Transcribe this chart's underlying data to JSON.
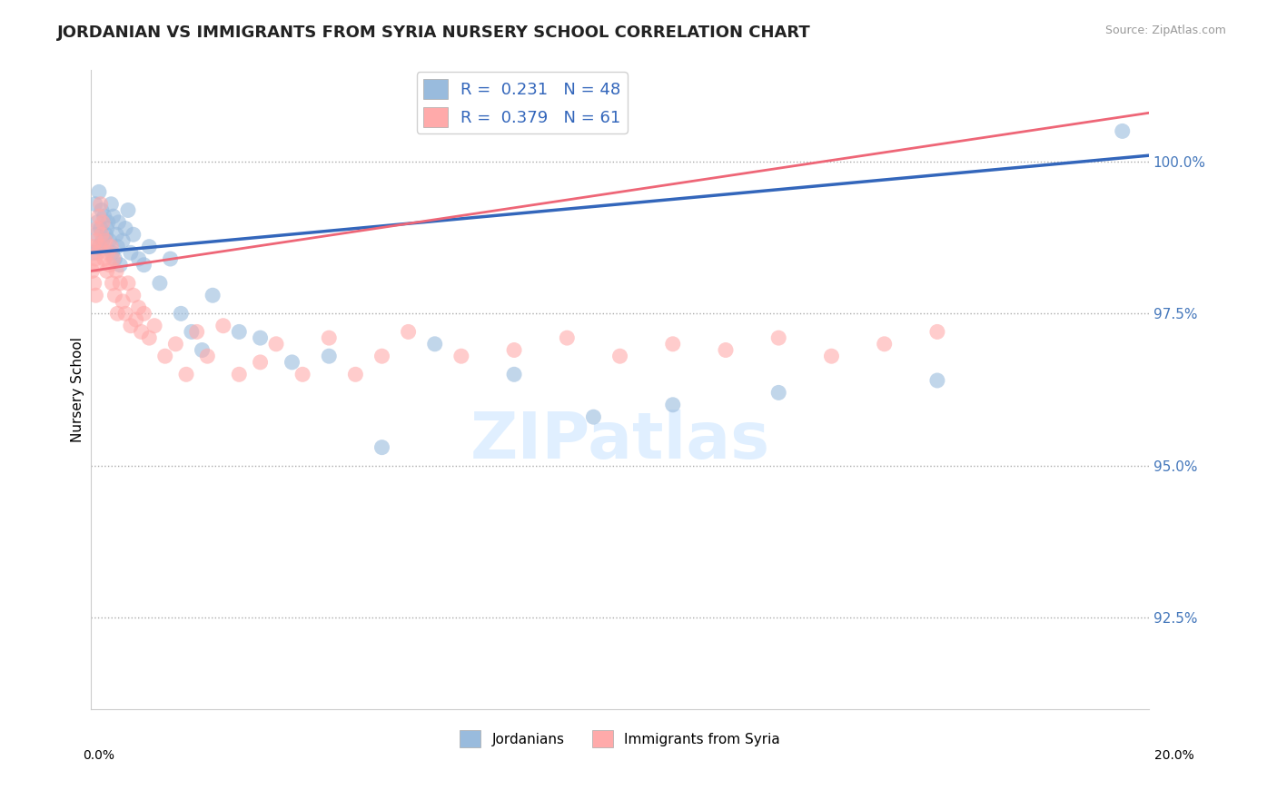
{
  "title": "JORDANIAN VS IMMIGRANTS FROM SYRIA NURSERY SCHOOL CORRELATION CHART",
  "ylabel": "Nursery School",
  "source": "Source: ZipAtlas.com",
  "watermark": "ZIPatlas",
  "legend_blue_label": "R =  0.231   N = 48",
  "legend_pink_label": "R =  0.379   N = 61",
  "legend_bottom_blue": "Jordanians",
  "legend_bottom_pink": "Immigrants from Syria",
  "x_range": [
    0.0,
    20.0
  ],
  "y_range": [
    91.0,
    101.5
  ],
  "y_ticks": [
    92.5,
    95.0,
    97.5,
    100.0
  ],
  "y_tick_labels": [
    "92.5%",
    "95.0%",
    "97.5%",
    "100.0%"
  ],
  "blue_color": "#99BBDD",
  "pink_color": "#FFAAAA",
  "blue_line_color": "#3366BB",
  "pink_line_color": "#EE6677",
  "blue_scatter_x": [
    0.05,
    0.08,
    0.1,
    0.12,
    0.15,
    0.15,
    0.18,
    0.2,
    0.22,
    0.25,
    0.28,
    0.3,
    0.32,
    0.35,
    0.38,
    0.4,
    0.42,
    0.45,
    0.48,
    0.5,
    0.52,
    0.55,
    0.6,
    0.65,
    0.7,
    0.75,
    0.8,
    0.9,
    1.0,
    1.1,
    1.3,
    1.5,
    1.7,
    1.9,
    2.1,
    2.3,
    2.8,
    3.2,
    3.8,
    4.5,
    5.5,
    6.5,
    8.0,
    9.5,
    11.0,
    13.0,
    16.0,
    19.5
  ],
  "blue_scatter_y": [
    98.5,
    99.3,
    98.8,
    99.0,
    98.6,
    99.5,
    98.9,
    99.2,
    98.7,
    99.1,
    98.8,
    98.9,
    99.0,
    98.7,
    99.3,
    98.5,
    99.1,
    98.4,
    98.8,
    98.6,
    99.0,
    98.3,
    98.7,
    98.9,
    99.2,
    98.5,
    98.8,
    98.4,
    98.3,
    98.6,
    98.0,
    98.4,
    97.5,
    97.2,
    96.9,
    97.8,
    97.2,
    97.1,
    96.7,
    96.8,
    95.3,
    97.0,
    96.5,
    95.8,
    96.0,
    96.2,
    96.4,
    100.5
  ],
  "pink_scatter_x": [
    0.02,
    0.04,
    0.06,
    0.08,
    0.09,
    0.1,
    0.11,
    0.12,
    0.13,
    0.15,
    0.17,
    0.18,
    0.2,
    0.22,
    0.25,
    0.27,
    0.3,
    0.32,
    0.35,
    0.38,
    0.4,
    0.42,
    0.45,
    0.48,
    0.5,
    0.55,
    0.6,
    0.65,
    0.7,
    0.75,
    0.8,
    0.85,
    0.9,
    0.95,
    1.0,
    1.1,
    1.2,
    1.4,
    1.6,
    1.8,
    2.0,
    2.2,
    2.5,
    2.8,
    3.2,
    3.5,
    4.0,
    4.5,
    5.0,
    5.5,
    6.0,
    7.0,
    8.0,
    9.0,
    10.0,
    11.0,
    12.0,
    13.0,
    14.0,
    15.0,
    16.0
  ],
  "pink_scatter_y": [
    98.2,
    98.6,
    98.0,
    98.4,
    97.8,
    98.7,
    98.3,
    98.9,
    98.5,
    99.1,
    98.6,
    99.3,
    98.8,
    99.0,
    98.4,
    98.7,
    98.2,
    98.5,
    98.3,
    98.6,
    98.0,
    98.4,
    97.8,
    98.2,
    97.5,
    98.0,
    97.7,
    97.5,
    98.0,
    97.3,
    97.8,
    97.4,
    97.6,
    97.2,
    97.5,
    97.1,
    97.3,
    96.8,
    97.0,
    96.5,
    97.2,
    96.8,
    97.3,
    96.5,
    96.7,
    97.0,
    96.5,
    97.1,
    96.5,
    96.8,
    97.2,
    96.8,
    96.9,
    97.1,
    96.8,
    97.0,
    96.9,
    97.1,
    96.8,
    97.0,
    97.2
  ]
}
